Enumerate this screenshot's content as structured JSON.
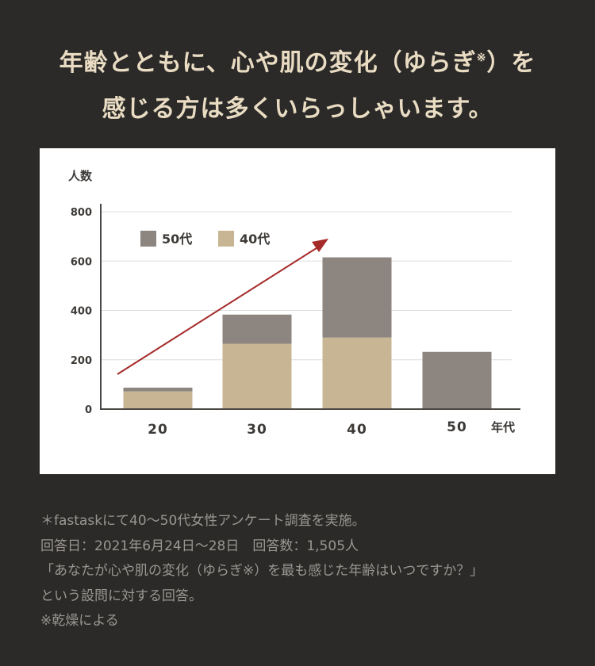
{
  "headline": {
    "line1_pre": "年齢とともに、心や肌の変化（ゆらぎ",
    "line1_sup": "※",
    "line1_post": "）を",
    "line2": "感じる方は多くいらっしゃいます。"
  },
  "chart_data": {
    "type": "bar",
    "stacked": true,
    "ylabel": "人数",
    "xlabel": "年代",
    "categories": [
      "20",
      "30",
      "40",
      "50"
    ],
    "yticks": [
      0,
      200,
      400,
      600,
      800
    ],
    "ylim": [
      0,
      800
    ],
    "grid": true,
    "legend_position": "top-left",
    "series": [
      {
        "name": "40代",
        "color": "#c8b594",
        "values": [
          72,
          265,
          290,
          0
        ]
      },
      {
        "name": "50代",
        "color": "#8c8580",
        "values": [
          15,
          118,
          325,
          232
        ]
      }
    ],
    "annotation": {
      "type": "trend-arrow",
      "color": "#a52a2a"
    }
  },
  "notes": [
    "＊fastaskにて40〜50代女性アンケート調査を実施。",
    "回答日：2021年6月24日〜28日　回答数：1,505人",
    "「あなたが心や肌の変化（ゆらぎ※）を最も感じた年齢はいつですか？」",
    "という設問に対する回答。",
    "※乾燥による"
  ]
}
